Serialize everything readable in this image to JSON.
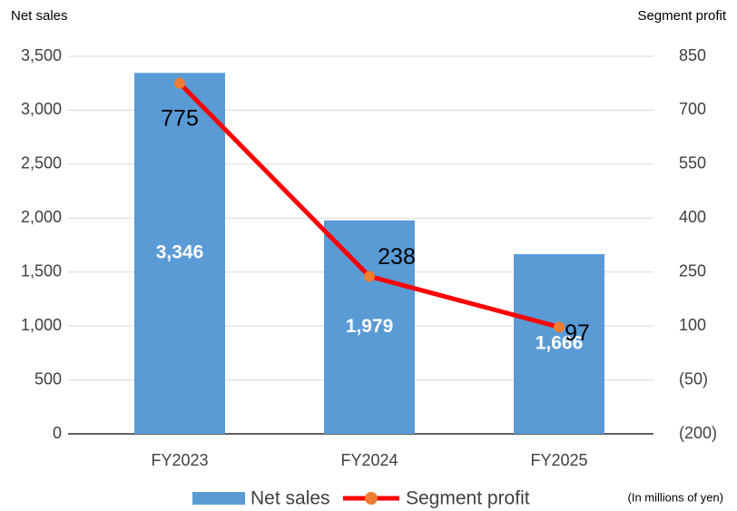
{
  "chart_data": {
    "type": "bar_line",
    "y_axis_title": "Net sales",
    "y2_axis_title": "Segment profit",
    "note": "(In millions of yen)",
    "categories": [
      "FY2023",
      "FY2024",
      "FY2025"
    ],
    "series": [
      {
        "name": "Net sales",
        "type": "bar",
        "color": "#5b9bd5",
        "values": [
          3346,
          1979,
          1666
        ],
        "value_labels": [
          "3,346",
          "1,979",
          "1,666"
        ]
      },
      {
        "name": "Segment profit",
        "type": "line",
        "axis": "y2",
        "color": "#ff0000",
        "marker_color": "#ed7d31",
        "values": [
          775,
          238,
          97
        ]
      }
    ],
    "ylim": [
      0,
      3500
    ],
    "yticks": [
      0,
      500,
      {
        "value": 1000,
        "label": "1,000"
      },
      {
        "value": 1500,
        "label": "1,500"
      },
      {
        "value": 2000,
        "label": "2,000"
      },
      {
        "value": 2500,
        "label": "2,500"
      },
      {
        "value": 3000,
        "label": "3,000"
      },
      {
        "value": 3500,
        "label": "3,500"
      }
    ],
    "y2lim": [
      -200,
      850
    ],
    "y2ticks": [
      {
        "value": -200,
        "label": "(200)"
      },
      {
        "value": -50,
        "label": "(50)"
      },
      100,
      250,
      400,
      550,
      700,
      850
    ],
    "grid": true,
    "legend": "bottom"
  }
}
